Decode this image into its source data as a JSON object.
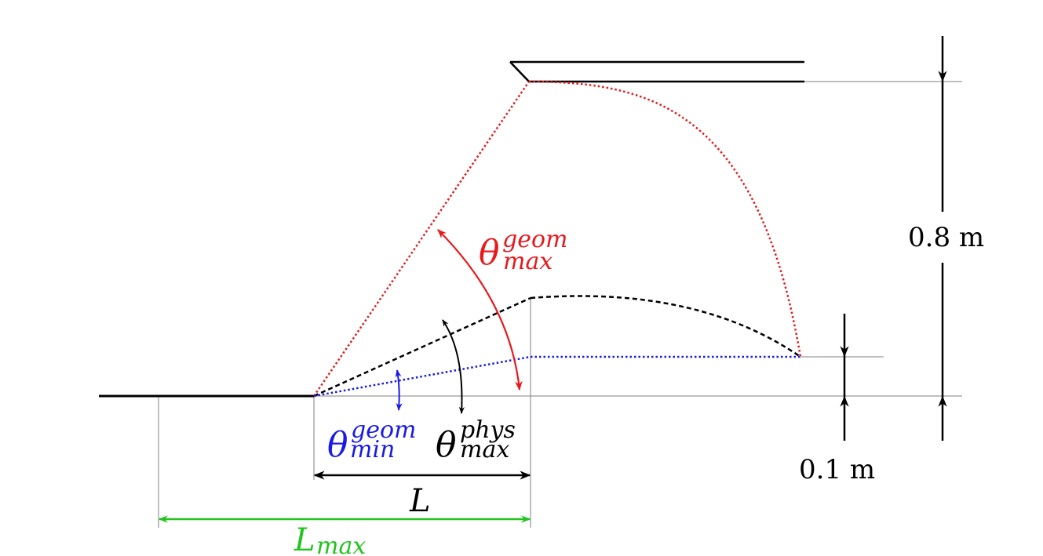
{
  "labels": {
    "theta_symbol": "θ",
    "geom_max": {
      "sup": "geom",
      "sub": "max"
    },
    "phys_max": {
      "sup": "phys",
      "sub": "max"
    },
    "geom_min": {
      "sup": "geom",
      "sub": "min"
    },
    "length": "L",
    "length_max": {
      "base": "L",
      "sub": "max"
    },
    "height_big": "0.8 m",
    "height_small": "0.1 m"
  },
  "colors": {
    "geom_max": "#e8191c",
    "geom_min": "#1a1ae6",
    "phys_max": "#000000",
    "length_max": "#22c41e",
    "line": "#000000",
    "guide": "#808080"
  }
}
